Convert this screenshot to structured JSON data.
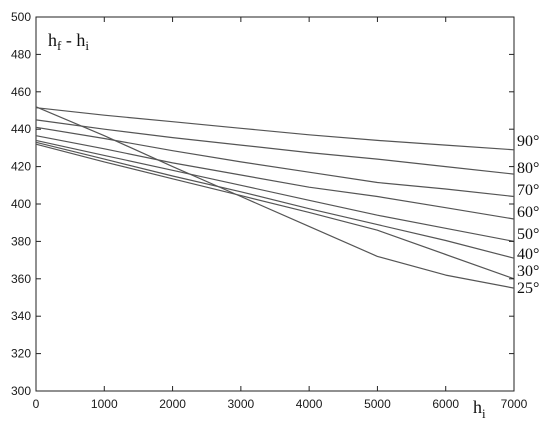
{
  "chart_data": {
    "type": "line",
    "ylabel": {
      "main": "h",
      "sub_f": "f",
      "sep": " - ",
      "sub_i": "i"
    },
    "xlabel": {
      "main": "h",
      "sub": "i"
    },
    "xlim": [
      0,
      7000
    ],
    "ylim": [
      300,
      500
    ],
    "xticks": [
      0,
      1000,
      2000,
      3000,
      4000,
      5000,
      6000,
      7000
    ],
    "yticks": [
      300,
      320,
      340,
      360,
      380,
      400,
      420,
      440,
      460,
      480,
      500
    ],
    "grid": false,
    "line_color": "#555555",
    "x": [
      0,
      1000,
      2000,
      3000,
      4000,
      5000,
      6000,
      7000
    ],
    "series": [
      {
        "name": "90°",
        "values": [
          451.5,
          447.5,
          444,
          440.5,
          437,
          434,
          431.5,
          429
        ]
      },
      {
        "name": "80°",
        "values": [
          445,
          440,
          435.5,
          431.5,
          427.5,
          424,
          420,
          416
        ]
      },
      {
        "name": "70°",
        "values": [
          441,
          435,
          428.5,
          422.5,
          417,
          411.5,
          408,
          404
        ]
      },
      {
        "name": "60°",
        "values": [
          436.5,
          429.5,
          422,
          415.5,
          409,
          404,
          398,
          392
        ]
      },
      {
        "name": "50°",
        "values": [
          434,
          426,
          418,
          410,
          402,
          394,
          387,
          380
        ]
      },
      {
        "name": "40°",
        "values": [
          433,
          424,
          415,
          406.5,
          397.5,
          389,
          380.5,
          371
        ]
      },
      {
        "name": "30°",
        "values": [
          432,
          422.5,
          413.5,
          404.5,
          395.5,
          386,
          373,
          360
        ]
      },
      {
        "name": "25°",
        "values": [
          452,
          436.5,
          420,
          404,
          388,
          372,
          362,
          355
        ]
      }
    ]
  }
}
